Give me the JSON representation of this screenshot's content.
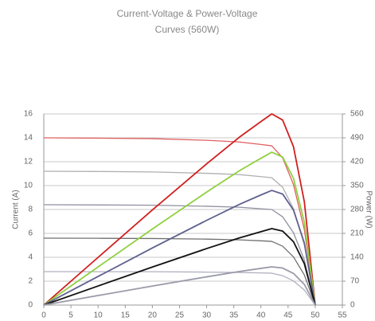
{
  "chart_data": {
    "type": "line",
    "title": "Current-Voltage & Power-Voltage",
    "subtitle": "Curves (560W)",
    "y_label": "Current (A)",
    "y2_label": "Power (W)",
    "x": [
      0,
      10,
      20,
      30,
      36,
      40,
      42,
      44,
      46,
      48,
      50
    ],
    "xlim": [
      0,
      55
    ],
    "xticks": [
      0,
      5,
      10,
      15,
      20,
      25,
      30,
      35,
      40,
      45,
      50,
      55
    ],
    "ylim": [
      0,
      16
    ],
    "yticks": [
      0,
      2,
      4,
      6,
      8,
      10,
      12,
      14,
      16
    ],
    "y2lim": [
      0,
      560
    ],
    "y2ticks": [
      0,
      70,
      140,
      210,
      280,
      350,
      420,
      490,
      560
    ],
    "grid": true,
    "series": [
      {
        "color": "#e06060",
        "values": [
          14,
          13.97,
          13.93,
          13.79,
          13.65,
          13.44,
          13.33,
          12.32,
          10.08,
          6.3,
          0
        ]
      },
      {
        "color": "#b0b0b0",
        "values": [
          11.2,
          11.18,
          11.14,
          11.03,
          10.92,
          10.75,
          10.66,
          9.86,
          8.06,
          5.04,
          0
        ]
      },
      {
        "color": "#9090a0",
        "values": [
          8.4,
          8.38,
          8.36,
          8.27,
          8.19,
          8.06,
          8.0,
          7.39,
          6.05,
          3.78,
          0
        ]
      },
      {
        "color": "#707070",
        "values": [
          5.6,
          5.59,
          5.57,
          5.52,
          5.46,
          5.38,
          5.33,
          4.93,
          4.03,
          2.52,
          0
        ]
      },
      {
        "color": "#b0b0c0",
        "values": [
          2.8,
          2.79,
          2.79,
          2.76,
          2.73,
          2.69,
          2.67,
          2.46,
          2.02,
          1.26,
          0
        ]
      },
      {
        "color": "#d02020",
        "axis": "y2",
        "values": [
          0,
          139.7,
          278.6,
          413.7,
          491.4,
          537.6,
          560,
          542.1,
          463.7,
          302.4,
          0
        ]
      },
      {
        "color": "#90d040",
        "axis": "y2",
        "values": [
          0,
          111.8,
          222.9,
          331,
          393.1,
          430.1,
          447.9,
          433.7,
          371,
          241.9,
          0
        ]
      },
      {
        "color": "#606090",
        "axis": "y2",
        "values": [
          0,
          83.8,
          167.2,
          248.2,
          294.8,
          322.6,
          335.9,
          325.3,
          278.2,
          181.4,
          0
        ]
      },
      {
        "color": "#111111",
        "axis": "y2",
        "values": [
          0,
          55.9,
          111.4,
          165.5,
          196.6,
          215,
          224,
          216.8,
          185.5,
          121,
          0
        ]
      },
      {
        "color": "#9a9aaa",
        "axis": "y2",
        "values": [
          0,
          27.9,
          55.7,
          82.7,
          98.3,
          107.5,
          112,
          108.4,
          92.7,
          60.5,
          0
        ]
      }
    ]
  }
}
